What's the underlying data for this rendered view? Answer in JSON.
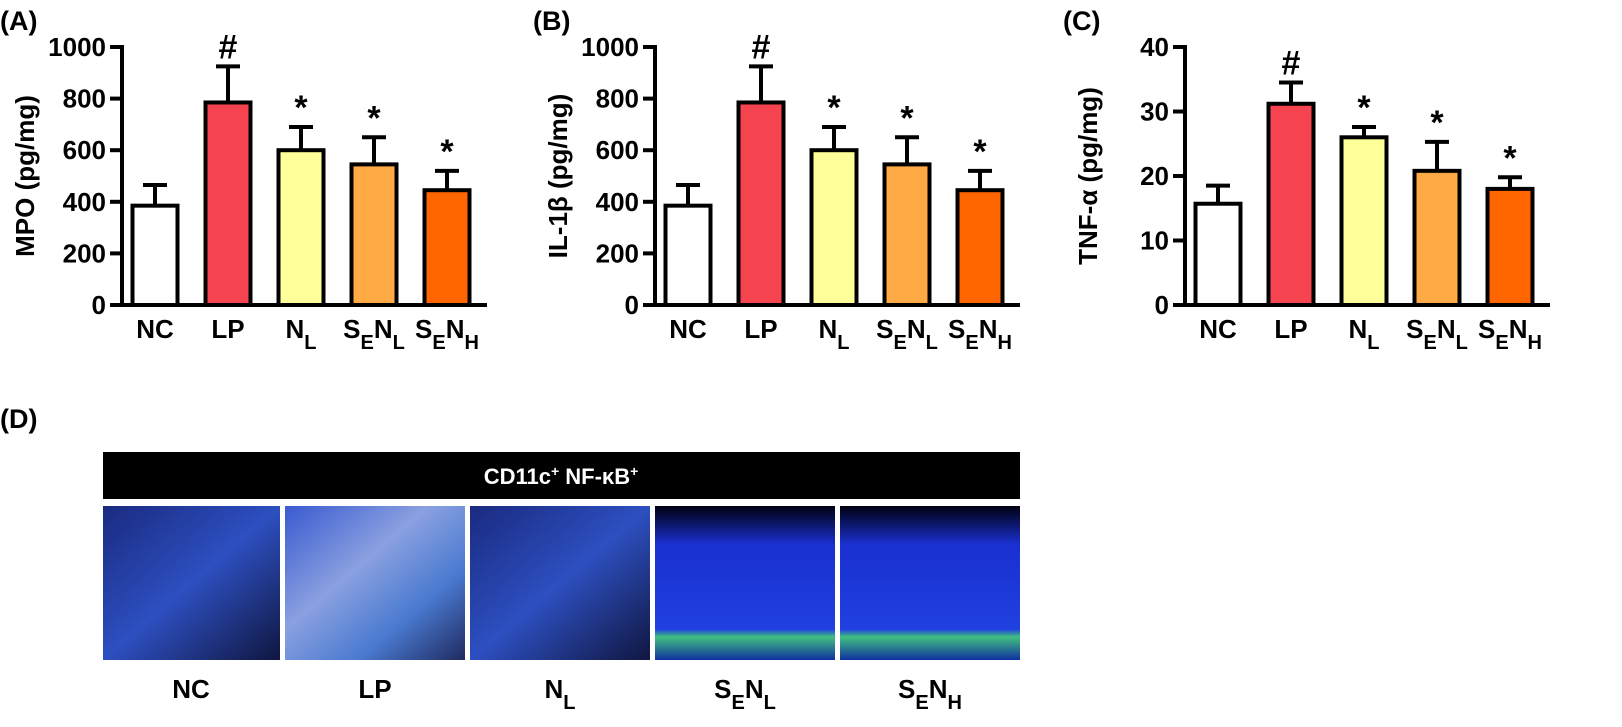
{
  "chart_data": [
    {
      "type": "bar",
      "panel": "(A)",
      "ylabel": "MPO (pg/mg)",
      "categories": [
        [
          "NC"
        ],
        [
          "LP"
        ],
        [
          "N",
          "L"
        ],
        [
          "S",
          "E",
          "N",
          "L"
        ],
        [
          "S",
          "E",
          "N",
          "H"
        ]
      ],
      "values": [
        385,
        785,
        600,
        545,
        445
      ],
      "errors": [
        80,
        140,
        90,
        105,
        75
      ],
      "colors": [
        "#ffffff",
        "#f5444f",
        "#ffff99",
        "#ffaa44",
        "#ff6600"
      ],
      "annotations": [
        null,
        "#",
        "*",
        "*",
        "*"
      ],
      "ylim": [
        0,
        1000
      ],
      "yticks": [
        0,
        200,
        400,
        600,
        800,
        1000
      ]
    },
    {
      "type": "bar",
      "panel": "(B)",
      "ylabel": "IL-1β (pg/mg)",
      "categories": [
        [
          "NC"
        ],
        [
          "LP"
        ],
        [
          "N",
          "L"
        ],
        [
          "S",
          "E",
          "N",
          "L"
        ],
        [
          "S",
          "E",
          "N",
          "H"
        ]
      ],
      "values": [
        385,
        785,
        600,
        545,
        445
      ],
      "errors": [
        80,
        140,
        90,
        105,
        75
      ],
      "colors": [
        "#ffffff",
        "#f5444f",
        "#ffff99",
        "#ffaa44",
        "#ff6600"
      ],
      "annotations": [
        null,
        "#",
        "*",
        "*",
        "*"
      ],
      "ylim": [
        0,
        1000
      ],
      "yticks": [
        0,
        200,
        400,
        600,
        800,
        1000
      ]
    },
    {
      "type": "bar",
      "panel": "(C)",
      "ylabel": "TNF-α (pg/mg)",
      "categories": [
        [
          "NC"
        ],
        [
          "LP"
        ],
        [
          "N",
          "L"
        ],
        [
          "S",
          "E",
          "N",
          "L"
        ],
        [
          "S",
          "E",
          "N",
          "H"
        ]
      ],
      "values": [
        15.7,
        31.2,
        26,
        20.8,
        18
      ],
      "errors": [
        2.8,
        3.3,
        1.6,
        4.5,
        1.8
      ],
      "colors": [
        "#ffffff",
        "#f5444f",
        "#ffff99",
        "#ffaa44",
        "#ff6600"
      ],
      "annotations": [
        null,
        "#",
        "*",
        "*",
        "*"
      ],
      "ylim": [
        0,
        40
      ],
      "yticks": [
        0,
        10,
        20,
        30,
        40
      ]
    }
  ],
  "panel_d": {
    "label": "(D)",
    "title": [
      "CD11c",
      "+",
      " NF-κB",
      "+"
    ],
    "images": [
      [
        "NC"
      ],
      [
        "LP"
      ],
      [
        "N",
        "L"
      ],
      [
        "S",
        "E",
        "N",
        "L"
      ],
      [
        "S",
        "E",
        "N",
        "H"
      ]
    ]
  }
}
